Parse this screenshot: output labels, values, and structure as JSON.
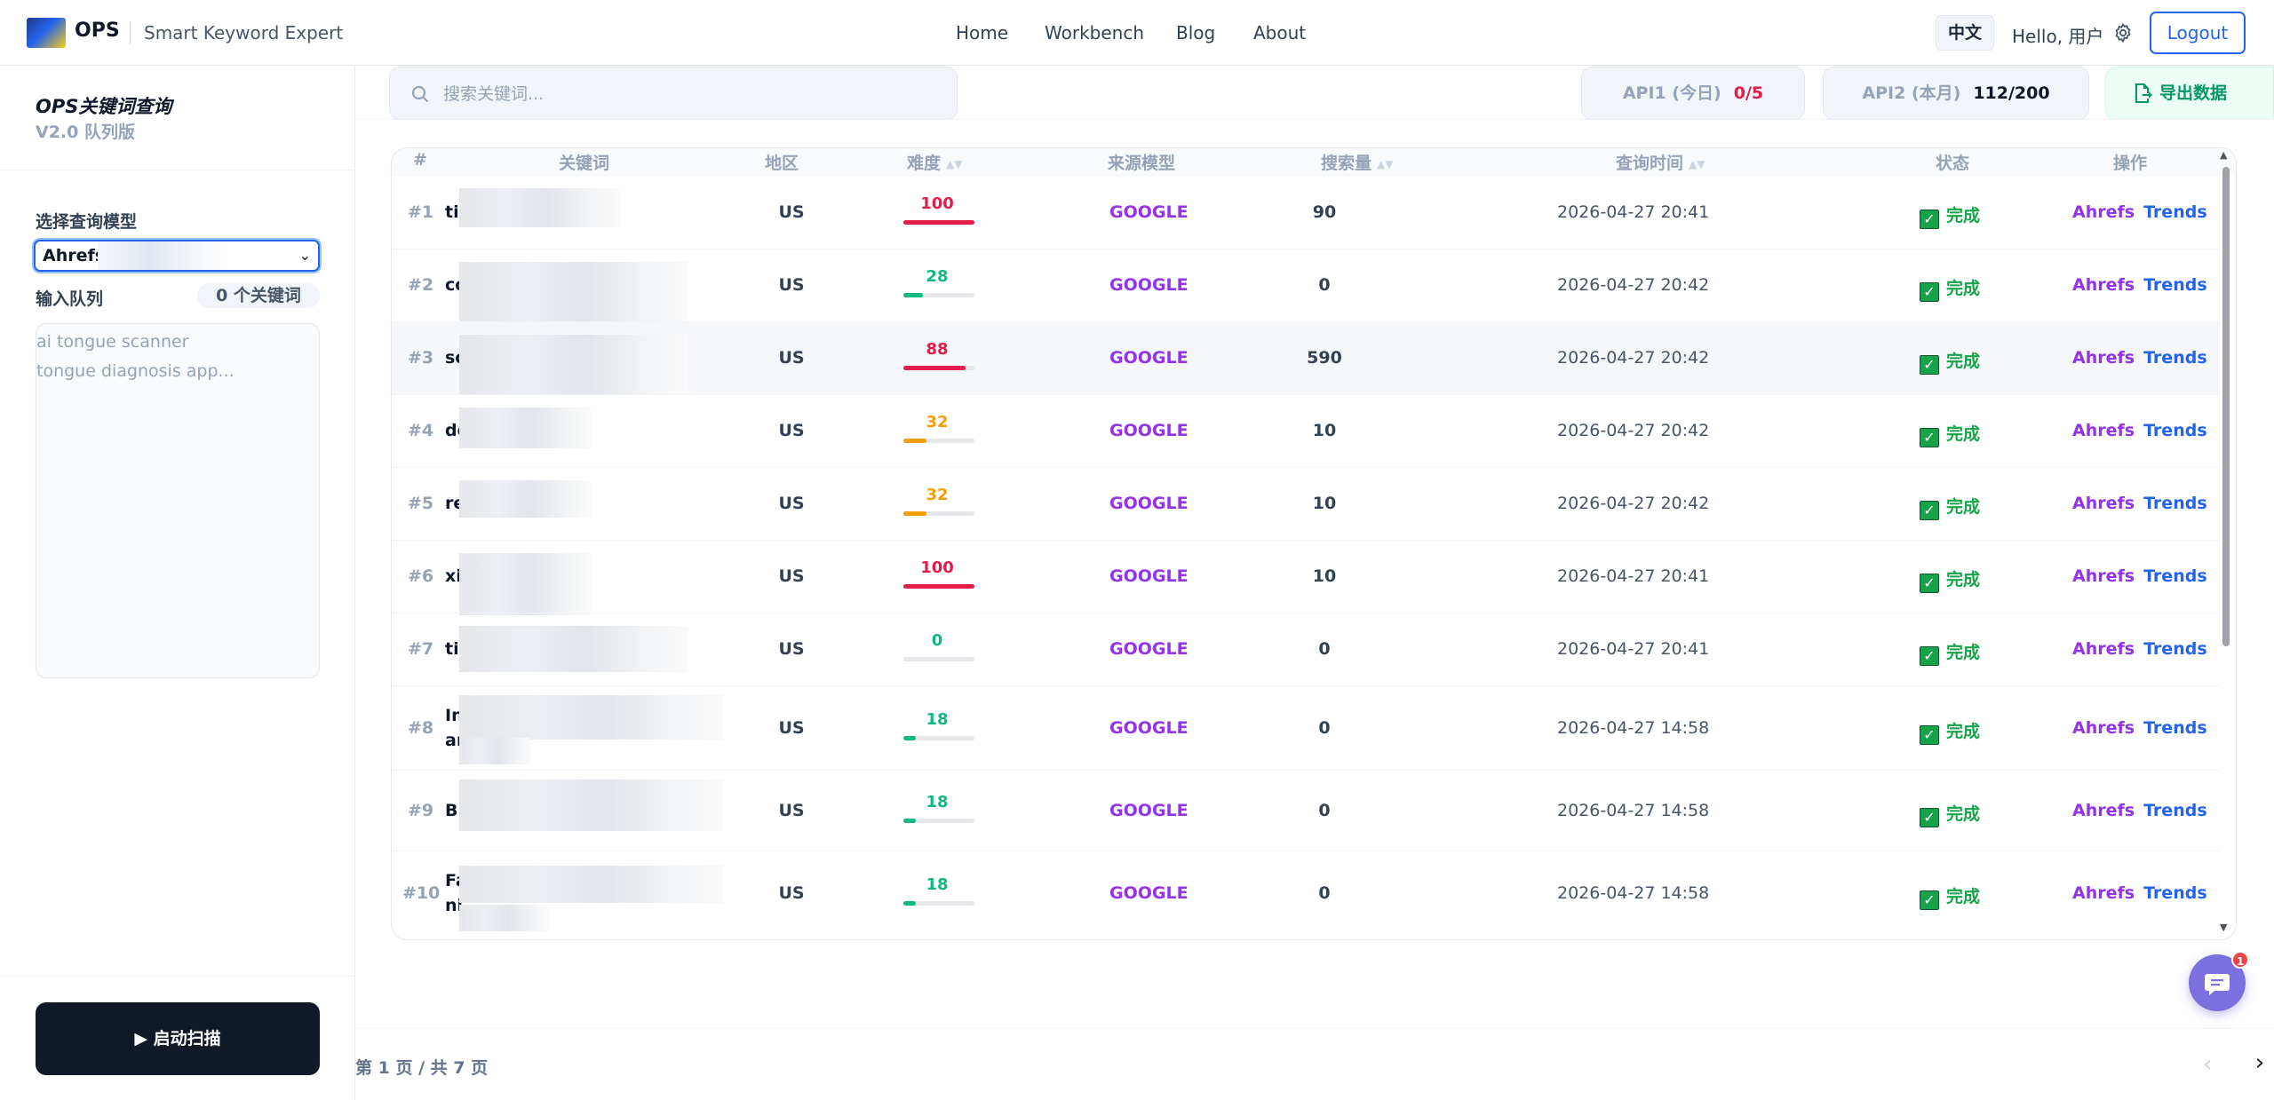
{
  "header": {
    "brand": "OPS",
    "subtitle": "Smart Keyword Expert",
    "nav": [
      "Home",
      "Workbench",
      "Blog",
      "About"
    ],
    "lang": "中文",
    "greeting": "Hello, 用户",
    "logout": "Logout"
  },
  "sidebar": {
    "title": "OPS关键词查询",
    "version": "V2.0 队列版",
    "model_label": "选择查询模型",
    "model_value": "Ahrefs",
    "queue_label": "输入队列",
    "queue_count": "0 个关键词",
    "queue_placeholder_lines": [
      "ai tongue scanner",
      "tongue diagnosis app..."
    ],
    "start_button": "启动扫描"
  },
  "toolbar": {
    "search_placeholder": "搜索关键词...",
    "api1_label": "API1 (今日)",
    "api1_value": "0/5",
    "api2_label": "API2 (本月)",
    "api2_value": "112/200",
    "export_label": "导出数据"
  },
  "table": {
    "headers": {
      "idx": "#",
      "keyword": "关键词",
      "region": "地区",
      "difficulty": "难度",
      "source": "来源模型",
      "volume": "搜索量",
      "time": "查询时间",
      "status": "状态",
      "ops": "操作"
    },
    "rows": [
      {
        "idx": "#1",
        "kw": "til",
        "kw2": "",
        "region": "US",
        "difficulty": "100",
        "diff_value": 100,
        "diff_color": "#e11d48",
        "source": "GOOGLE",
        "volume": "90",
        "time": "2026-04-27 20:41",
        "status": "完成"
      },
      {
        "idx": "#2",
        "kw": "co",
        "kw2": "",
        "region": "US",
        "difficulty": "28",
        "diff_value": 28,
        "diff_color": "#10b981",
        "source": "GOOGLE",
        "volume": "0",
        "time": "2026-04-27 20:42",
        "status": "完成"
      },
      {
        "idx": "#3",
        "kw": "sc",
        "kw2": "",
        "region": "US",
        "difficulty": "88",
        "diff_value": 88,
        "diff_color": "#e11d48",
        "source": "GOOGLE",
        "volume": "590",
        "time": "2026-04-27 20:42",
        "status": "完成"
      },
      {
        "idx": "#4",
        "kw": "do",
        "kw2": "",
        "region": "US",
        "difficulty": "32",
        "diff_value": 32,
        "diff_color": "#f59e0b",
        "source": "GOOGLE",
        "volume": "10",
        "time": "2026-04-27 20:42",
        "status": "完成"
      },
      {
        "idx": "#5",
        "kw": "re",
        "kw2": "",
        "region": "US",
        "difficulty": "32",
        "diff_value": 32,
        "diff_color": "#f59e0b",
        "source": "GOOGLE",
        "volume": "10",
        "time": "2026-04-27 20:42",
        "status": "完成"
      },
      {
        "idx": "#6",
        "kw": "xi",
        "kw2": "",
        "region": "US",
        "difficulty": "100",
        "diff_value": 100,
        "diff_color": "#e11d48",
        "source": "GOOGLE",
        "volume": "10",
        "time": "2026-04-27 20:41",
        "status": "完成"
      },
      {
        "idx": "#7",
        "kw": "til",
        "kw2": "",
        "region": "US",
        "difficulty": "0",
        "diff_value": 0,
        "diff_color": "#10b981",
        "source": "GOOGLE",
        "volume": "0",
        "time": "2026-04-27 20:41",
        "status": "完成"
      },
      {
        "idx": "#8",
        "kw": "In",
        "kw2": "ar",
        "region": "US",
        "difficulty": "18",
        "diff_value": 18,
        "diff_color": "#10b981",
        "source": "GOOGLE",
        "volume": "0",
        "time": "2026-04-27 14:58",
        "status": "完成"
      },
      {
        "idx": "#9",
        "kw": "Bu",
        "kw2": "",
        "region": "US",
        "difficulty": "18",
        "diff_value": 18,
        "diff_color": "#10b981",
        "source": "GOOGLE",
        "volume": "0",
        "time": "2026-04-27 14:58",
        "status": "完成"
      },
      {
        "idx": "#10",
        "kw": "Fa",
        "kw2": "ni",
        "region": "US",
        "difficulty": "18",
        "diff_value": 18,
        "diff_color": "#10b981",
        "source": "GOOGLE",
        "volume": "0",
        "time": "2026-04-27 14:58",
        "status": "完成"
      }
    ],
    "op_ahrefs": "Ahrefs",
    "op_trends": "Trends"
  },
  "pagination": {
    "info": "第 1 页 / 共 7 页"
  },
  "chat": {
    "badge": "1"
  },
  "colors": {
    "accent": "#2563eb",
    "success": "#16a34a",
    "source": "#9333ea",
    "danger": "#e11d48",
    "warning": "#f59e0b"
  }
}
